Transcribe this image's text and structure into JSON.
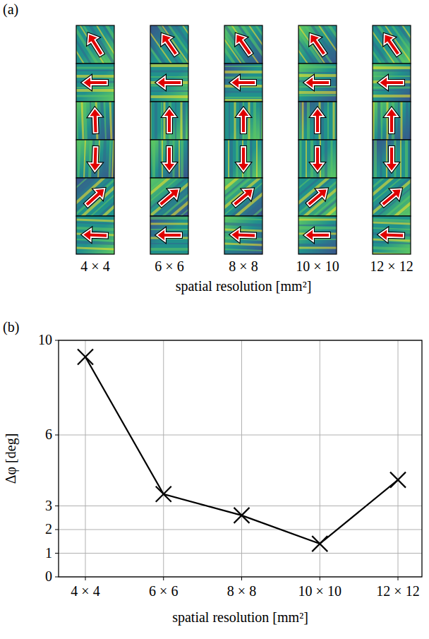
{
  "panel_a": {
    "panel_label": "(a)",
    "columns": [
      "4 × 4",
      "6 × 6",
      "8 × 8",
      "10 × 10",
      "12 × 12"
    ],
    "xlabel": "spatial resolution [mm²]",
    "arrow_angles": [
      [
        122,
        180,
        92,
        268,
        42,
        178
      ],
      [
        125,
        180,
        90,
        270,
        40,
        180
      ],
      [
        125,
        180,
        90,
        270,
        40,
        178
      ],
      [
        125,
        180,
        90,
        270,
        40,
        180
      ],
      [
        125,
        180,
        90,
        270,
        40,
        178
      ]
    ]
  },
  "chart_data": {
    "type": "line",
    "panel_label": "(b)",
    "categories": [
      "4 × 4",
      "6 × 6",
      "8 × 8",
      "10 × 10",
      "12 × 12"
    ],
    "values": [
      9.3,
      3.5,
      2.6,
      1.4,
      4.1
    ],
    "xlabel": "spatial resolution [mm²]",
    "ylabel": "Δφ [deg]",
    "ylim": [
      0,
      10
    ],
    "yticks": [
      0,
      1,
      2,
      3,
      6,
      10
    ],
    "grid": true,
    "color": "#000000",
    "marker": "x",
    "line_style": "solid"
  }
}
